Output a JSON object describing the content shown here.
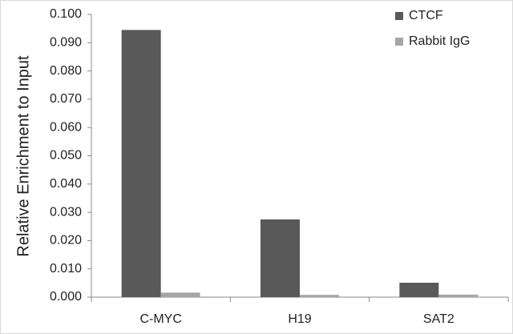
{
  "chart_data": {
    "type": "bar",
    "y_label": "Relative Enrichment to Input",
    "categories": [
      "C-MYC",
      "H19",
      "SAT2"
    ],
    "series": [
      {
        "name": "CTCF",
        "color": "#595959",
        "values": [
          0.0945,
          0.0275,
          0.0051
        ]
      },
      {
        "name": "Rabbit IgG",
        "color": "#a6a6a6",
        "values": [
          0.0016,
          0.0008,
          0.0009
        ]
      }
    ],
    "ylim": [
      0,
      0.1
    ],
    "yticks": [
      {
        "value": 0,
        "label": "0.000"
      },
      {
        "value": 0.01,
        "label": "0.010"
      },
      {
        "value": 0.02,
        "label": "0.020"
      },
      {
        "value": 0.03,
        "label": "0.030"
      },
      {
        "value": 0.04,
        "label": "0.040"
      },
      {
        "value": 0.05,
        "label": "0.050"
      },
      {
        "value": 0.06,
        "label": "0.060"
      },
      {
        "value": 0.07,
        "label": "0.070"
      },
      {
        "value": 0.08,
        "label": "0.080"
      },
      {
        "value": 0.09,
        "label": "0.090"
      },
      {
        "value": 0.1,
        "label": "0.100"
      }
    ],
    "grid": false,
    "legend": "top-right"
  }
}
